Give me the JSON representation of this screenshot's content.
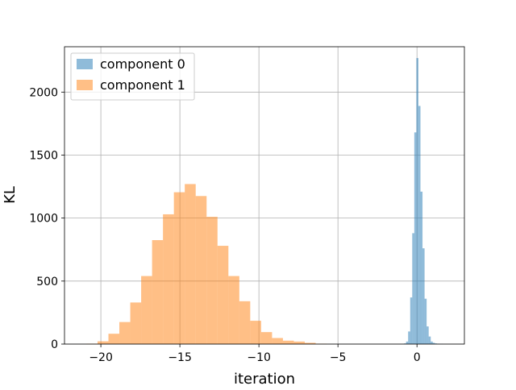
{
  "chart_data": {
    "type": "bar",
    "subtype": "histogram",
    "xlabel": "iteration",
    "ylabel": "KL",
    "xlim": [
      -22.3,
      3.0
    ],
    "ylim": [
      0,
      2360
    ],
    "xticks": [
      -20,
      -15,
      -10,
      -5,
      0
    ],
    "xtick_labels": [
      "−20",
      "−15",
      "−10",
      "−5",
      "0"
    ],
    "yticks": [
      0,
      500,
      1000,
      1500,
      2000
    ],
    "ytick_labels": [
      "0",
      "500",
      "1000",
      "1500",
      "2000"
    ],
    "grid": true,
    "legend_position": "upper-left",
    "series": [
      {
        "name": "component 0",
        "color": "#1f77b4",
        "opacity": 0.5,
        "bin_start": -0.82,
        "bin_width": 0.13,
        "counts": [
          5,
          20,
          100,
          370,
          880,
          1680,
          2270,
          1890,
          1210,
          760,
          360,
          140,
          60,
          20,
          10,
          5,
          3,
          1,
          1
        ]
      },
      {
        "name": "component 1",
        "color": "#ff7f0e",
        "opacity": 0.5,
        "bin_start": -20.9,
        "bin_width": 0.69,
        "counts": [
          3,
          22,
          82,
          175,
          330,
          540,
          825,
          1030,
          1205,
          1270,
          1175,
          1010,
          780,
          540,
          340,
          185,
          95,
          48,
          27,
          20,
          10,
          3
        ]
      }
    ]
  }
}
